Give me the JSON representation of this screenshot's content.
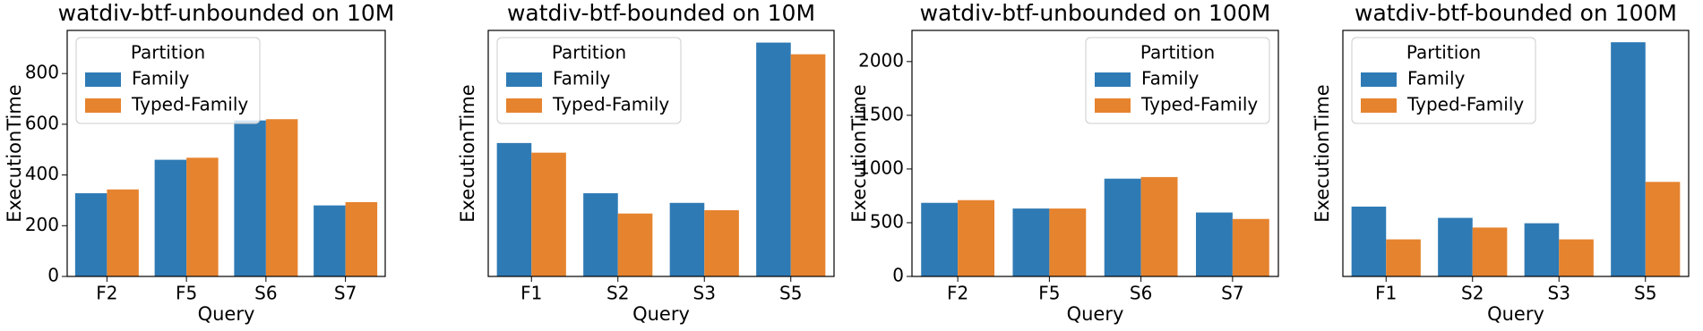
{
  "chart_data": [
    {
      "type": "bar",
      "title": "watdiv-btf-unbounded on 10M",
      "x_label": "Query",
      "y_label": "ExecutionTime",
      "categories": [
        "F2",
        "F5",
        "S6",
        "S7"
      ],
      "series": [
        {
          "name": "Family",
          "color": "#2e7ab5",
          "values": [
            328,
            460,
            615,
            280
          ]
        },
        {
          "name": "Typed-Family",
          "color": "#e6832e",
          "values": [
            343,
            468,
            620,
            293
          ]
        }
      ],
      "ylim": [
        0,
        970
      ],
      "yticks": [
        0,
        200,
        400,
        600,
        800
      ],
      "legend": "upper left",
      "legend_title": "Partition"
    },
    {
      "type": "bar",
      "title": "watdiv-btf-bounded on 10M",
      "x_label": "Query",
      "y_label": "ExecutionTime",
      "categories": [
        "F1",
        "S2",
        "S3",
        "S5"
      ],
      "series": [
        {
          "name": "Family",
          "color": "#2e7ab5",
          "values": [
            526,
            328,
            290,
            922
          ]
        },
        {
          "name": "Typed-Family",
          "color": "#e6832e",
          "values": [
            488,
            248,
            261,
            876
          ]
        }
      ],
      "ylim": [
        0,
        970
      ],
      "legend": "upper left",
      "legend_title": "Partition"
    },
    {
      "type": "bar",
      "title": "watdiv-btf-unbounded on 100M",
      "x_label": "Query",
      "y_label": "ExecutionTime",
      "categories": [
        "F2",
        "F5",
        "S6",
        "S7"
      ],
      "series": [
        {
          "name": "Family",
          "color": "#2e7ab5",
          "values": [
            685,
            632,
            910,
            595
          ]
        },
        {
          "name": "Typed-Family",
          "color": "#e6832e",
          "values": [
            710,
            632,
            925,
            535
          ]
        }
      ],
      "ylim": [
        0,
        2290
      ],
      "yticks": [
        0,
        500,
        1000,
        1500,
        2000
      ],
      "legend": "upper right",
      "legend_title": "Partition"
    },
    {
      "type": "bar",
      "title": "watdiv-btf-bounded on 100M",
      "x_label": "Query",
      "y_label": "ExecutionTime",
      "categories": [
        "F1",
        "S2",
        "S3",
        "S5"
      ],
      "series": [
        {
          "name": "Family",
          "color": "#2e7ab5",
          "values": [
            650,
            545,
            495,
            2180
          ]
        },
        {
          "name": "Typed-Family",
          "color": "#e6832e",
          "values": [
            345,
            455,
            345,
            880
          ]
        }
      ],
      "ylim": [
        0,
        2290
      ],
      "legend": "upper left",
      "legend_title": "Partition"
    }
  ]
}
